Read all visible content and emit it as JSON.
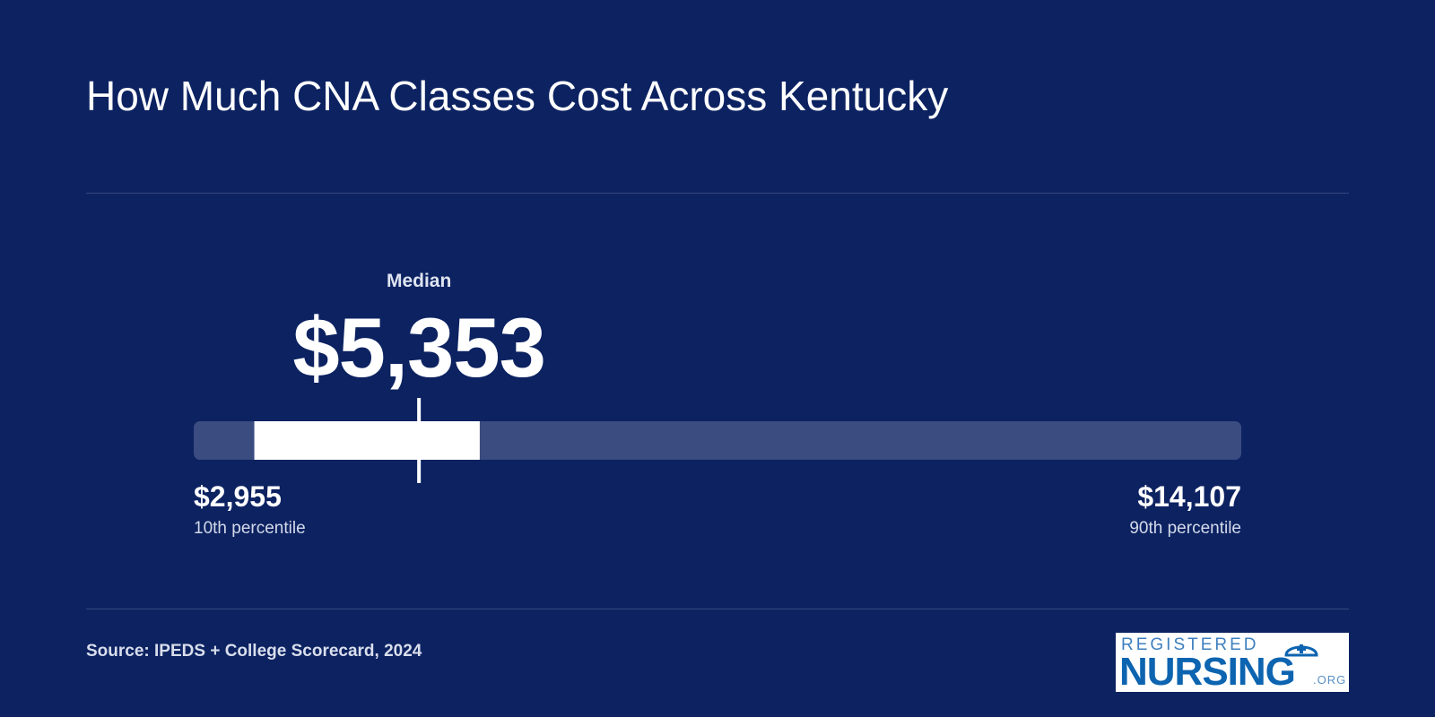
{
  "title": "How Much CNA Classes Cost Across Kentucky",
  "median": {
    "label": "Median",
    "value_text": "$5,353"
  },
  "low": {
    "value_text": "$2,955",
    "label": "10th percentile"
  },
  "high": {
    "value_text": "$14,107",
    "label": "90th percentile"
  },
  "source": "Source: IPEDS + College Scorecard, 2024",
  "logo": {
    "line1": "REGISTERED",
    "line2": "NURSING",
    "suffix": ".ORG"
  },
  "colors": {
    "background": "#0c2261",
    "track": "#3a4c80",
    "range": "#ffffff",
    "divider": "#35487e",
    "logo_blue": "#0d64b0"
  },
  "chart_data": {
    "type": "range",
    "axis_min": 2955,
    "axis_max": 14107,
    "percentile_10": 2955,
    "percentile_90": 14107,
    "median": 5353,
    "highlight_range": [
      3600,
      6000
    ]
  }
}
